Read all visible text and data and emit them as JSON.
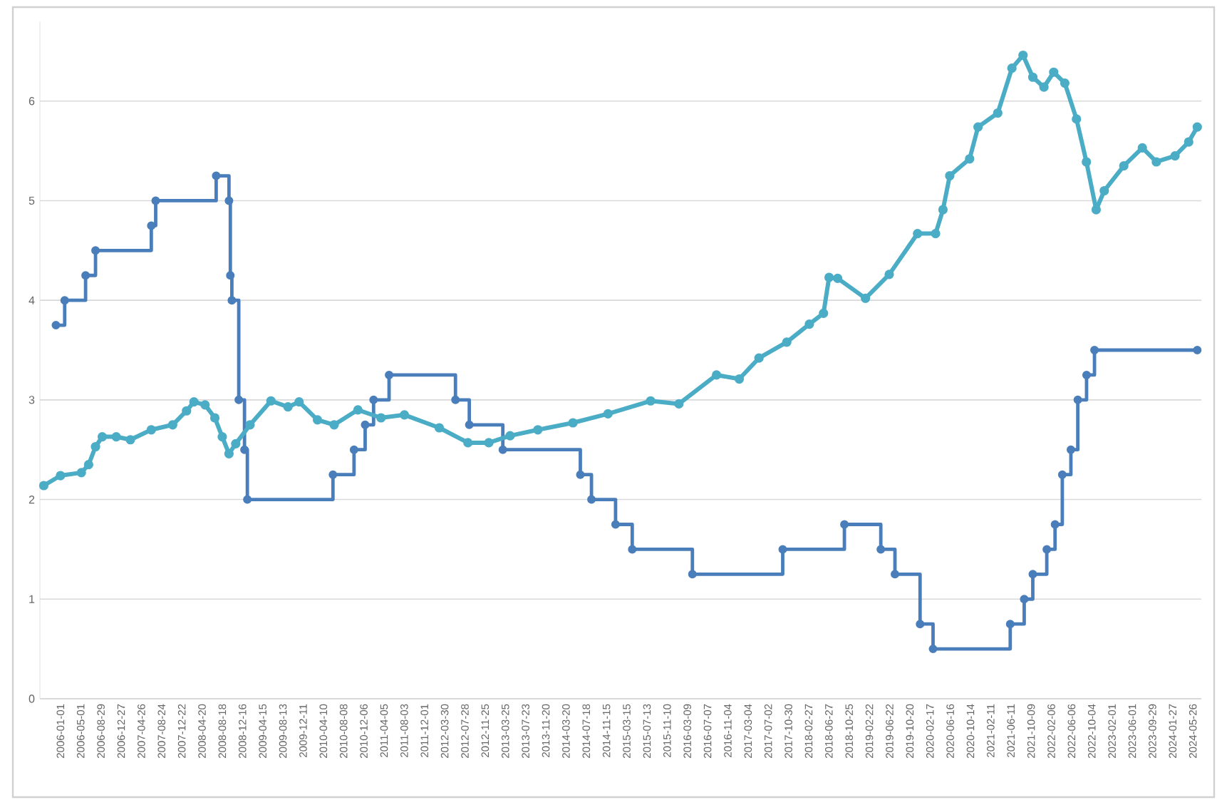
{
  "chart_data": {
    "type": "line",
    "xlim": [
      "2005-09-01",
      "2024-07-15"
    ],
    "ylim": [
      0,
      6.8
    ],
    "yticks": [
      0,
      1,
      2,
      3,
      4,
      5,
      6
    ],
    "xticks": [
      "2006-01-01",
      "2006-05-01",
      "2006-08-29",
      "2006-12-27",
      "2007-04-26",
      "2007-08-24",
      "2007-12-22",
      "2008-04-20",
      "2008-08-18",
      "2008-12-16",
      "2009-04-15",
      "2009-08-13",
      "2009-12-11",
      "2010-04-10",
      "2010-08-08",
      "2010-12-06",
      "2011-04-05",
      "2011-08-03",
      "2011-12-01",
      "2012-03-30",
      "2012-07-28",
      "2012-11-25",
      "2013-03-25",
      "2013-07-23",
      "2013-11-20",
      "2014-03-20",
      "2014-07-18",
      "2014-11-15",
      "2015-03-15",
      "2015-07-13",
      "2015-11-10",
      "2016-03-09",
      "2016-07-07",
      "2016-11-04",
      "2017-03-04",
      "2017-07-02",
      "2017-10-30",
      "2018-02-27",
      "2018-06-27",
      "2018-10-25",
      "2019-02-22",
      "2019-06-22",
      "2019-10-20",
      "2020-02-17",
      "2020-06-16",
      "2020-10-14",
      "2021-02-11",
      "2021-06-11",
      "2021-10-09",
      "2022-02-06",
      "2022-06-06",
      "2022-10-04",
      "2023-02-01",
      "2023-06-01",
      "2023-09-29",
      "2024-01-27",
      "2024-05-26"
    ],
    "grid": "y",
    "marker": "circle",
    "series": [
      {
        "type": "step",
        "color": "#4a7ebb",
        "x": [
          "2005-12-05",
          "2006-01-26",
          "2006-05-30",
          "2006-07-28",
          "2007-06-24",
          "2007-07-20",
          "2008-07-13",
          "2008-09-27",
          "2008-10-05",
          "2008-10-14",
          "2008-11-24",
          "2008-12-28",
          "2009-01-14",
          "2010-06-06",
          "2010-10-09",
          "2010-12-14",
          "2011-02-02",
          "2011-05-05",
          "2012-06-02",
          "2012-08-23",
          "2013-03-10",
          "2014-06-13",
          "2014-08-18",
          "2015-01-08",
          "2015-04-17",
          "2016-04-08",
          "2017-09-26",
          "2018-09-27",
          "2019-05-01",
          "2019-07-24",
          "2019-12-20",
          "2020-03-06",
          "2021-06-07",
          "2021-08-29",
          "2021-10-19",
          "2022-01-10",
          "2022-02-28",
          "2022-04-12",
          "2022-06-02",
          "2022-07-13",
          "2022-09-03",
          "2022-10-20",
          "2024-06-21"
        ],
        "values": [
          3.75,
          4.0,
          4.25,
          4.5,
          4.75,
          5.0,
          5.25,
          5.0,
          4.25,
          4.0,
          3.0,
          2.5,
          2.0,
          2.25,
          2.5,
          2.75,
          3.0,
          3.25,
          3.0,
          2.75,
          2.5,
          2.25,
          2.0,
          1.75,
          1.5,
          1.25,
          1.5,
          1.75,
          1.5,
          1.25,
          0.75,
          0.5,
          0.75,
          1.0,
          1.25,
          1.5,
          1.75,
          2.25,
          2.5,
          3.0,
          3.25,
          3.5,
          3.5
        ]
      },
      {
        "type": "line",
        "color": "#4bacc6",
        "x": [
          "2005-09-24",
          "2006-01-01",
          "2006-05-05",
          "2006-06-17",
          "2006-07-28",
          "2006-09-06",
          "2006-11-28",
          "2007-02-20",
          "2007-06-24",
          "2007-10-29",
          "2008-01-19",
          "2008-03-03",
          "2008-05-08",
          "2008-07-05",
          "2008-08-18",
          "2008-09-27",
          "2008-11-06",
          "2009-01-30",
          "2009-06-03",
          "2009-09-12",
          "2009-11-17",
          "2010-03-06",
          "2010-06-13",
          "2010-11-01",
          "2011-03-18",
          "2011-08-04",
          "2012-02-27",
          "2012-08-15",
          "2012-12-17",
          "2013-04-22",
          "2013-10-04",
          "2014-04-30",
          "2014-11-24",
          "2015-08-04",
          "2016-01-19",
          "2016-08-29",
          "2017-01-11",
          "2017-05-08",
          "2017-10-20",
          "2018-03-03",
          "2018-05-26",
          "2018-06-28",
          "2018-08-18",
          "2019-01-30",
          "2019-06-20",
          "2019-12-05",
          "2020-03-21",
          "2020-05-04",
          "2020-06-13",
          "2020-10-09",
          "2020-11-28",
          "2021-03-25",
          "2021-06-17",
          "2021-08-22",
          "2021-10-19",
          "2021-12-24",
          "2022-02-20",
          "2022-04-27",
          "2022-07-05",
          "2022-09-02",
          "2022-10-30",
          "2022-12-17",
          "2023-04-12",
          "2023-07-31",
          "2023-10-22",
          "2024-02-10",
          "2024-05-01",
          "2024-06-21"
        ],
        "values": [
          2.14,
          2.24,
          2.27,
          2.35,
          2.53,
          2.63,
          2.63,
          2.6,
          2.7,
          2.75,
          2.89,
          2.98,
          2.95,
          2.82,
          2.63,
          2.46,
          2.56,
          2.75,
          2.99,
          2.93,
          2.98,
          2.8,
          2.75,
          2.9,
          2.82,
          2.85,
          2.72,
          2.57,
          2.57,
          2.64,
          2.7,
          2.77,
          2.86,
          2.99,
          2.96,
          3.25,
          3.21,
          3.42,
          3.58,
          3.76,
          3.87,
          4.23,
          4.22,
          4.02,
          4.26,
          4.67,
          4.67,
          4.91,
          5.25,
          5.42,
          5.74,
          5.88,
          6.33,
          6.46,
          6.24,
          6.14,
          6.29,
          6.18,
          5.82,
          5.39,
          4.91,
          5.1,
          5.35,
          5.53,
          5.39,
          5.45,
          5.59,
          5.74
        ]
      }
    ]
  }
}
